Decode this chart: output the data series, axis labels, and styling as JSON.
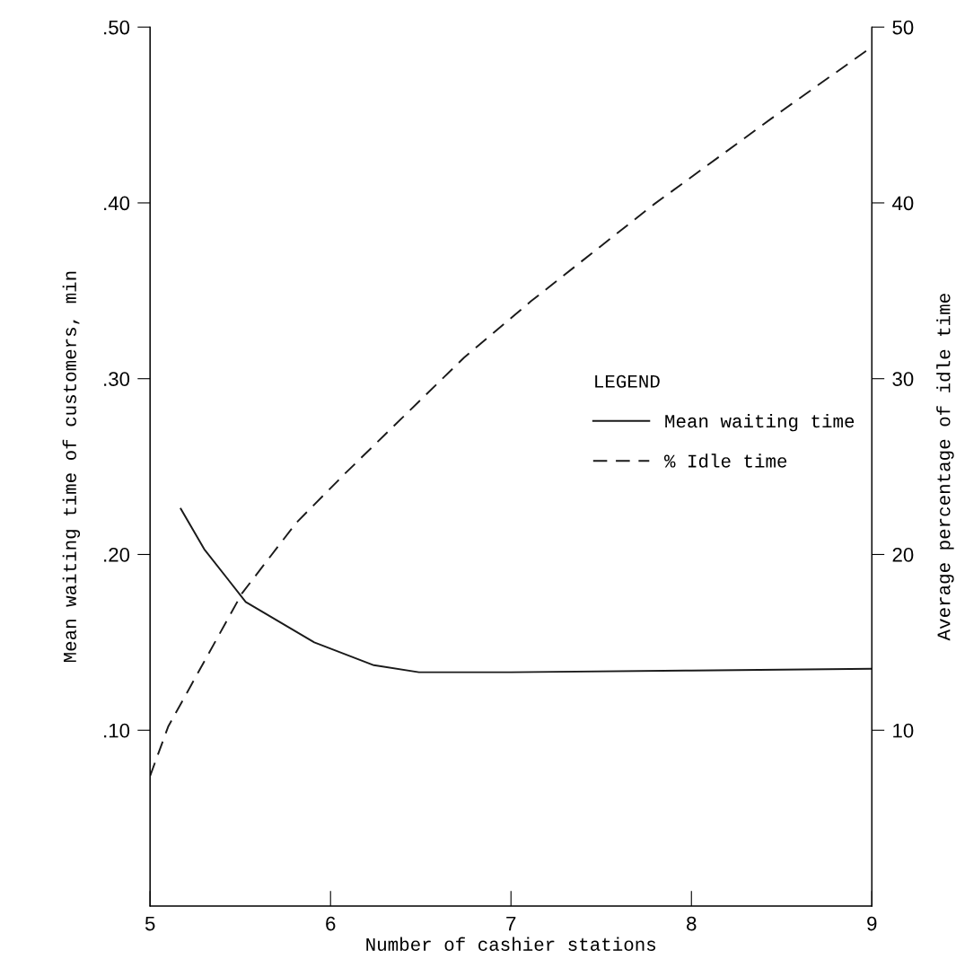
{
  "chart_data": {
    "type": "line",
    "xlabel": "Number of cashier stations",
    "ylabel": "Mean waiting time of customers, min",
    "y2label": "Average percentage of idle time",
    "legend_title": "LEGEND",
    "xlim": [
      5,
      9
    ],
    "xticks": [
      5,
      6,
      7,
      8,
      9
    ],
    "ylim": [
      0,
      0.5
    ],
    "yticks": [
      {
        "value": 0.1,
        "label": ".10"
      },
      {
        "value": 0.2,
        "label": ".20"
      },
      {
        "value": 0.3,
        "label": ".30"
      },
      {
        "value": 0.4,
        "label": ".40"
      },
      {
        "value": 0.5,
        "label": ".50"
      }
    ],
    "y2lim": [
      0,
      50
    ],
    "y2ticks": [
      10,
      20,
      30,
      40,
      50
    ],
    "grid": false,
    "legend": "right",
    "marker": "none",
    "series": [
      {
        "name": "Mean waiting time",
        "color": "#1a1a1a",
        "line_style": "solid",
        "x": [
          5.17,
          5.3,
          5.53,
          5.91,
          6.24,
          6.49,
          7.0,
          8.0,
          9.0
        ],
        "values": [
          0.226,
          0.203,
          0.173,
          0.15,
          0.137,
          0.133,
          0.133,
          0.134,
          0.135
        ]
      },
      {
        "name": "% Idle time",
        "color": "#1a1a1a",
        "line_style": "dashed",
        "axis": "y2",
        "x": [
          5.0,
          5.1,
          5.51,
          5.81,
          6.08,
          6.74,
          7.11,
          7.79,
          8.51,
          8.99
        ],
        "values": [
          7.4,
          10.2,
          17.8,
          21.8,
          24.6,
          31.2,
          34.4,
          39.9,
          45.3,
          48.8
        ]
      }
    ]
  }
}
